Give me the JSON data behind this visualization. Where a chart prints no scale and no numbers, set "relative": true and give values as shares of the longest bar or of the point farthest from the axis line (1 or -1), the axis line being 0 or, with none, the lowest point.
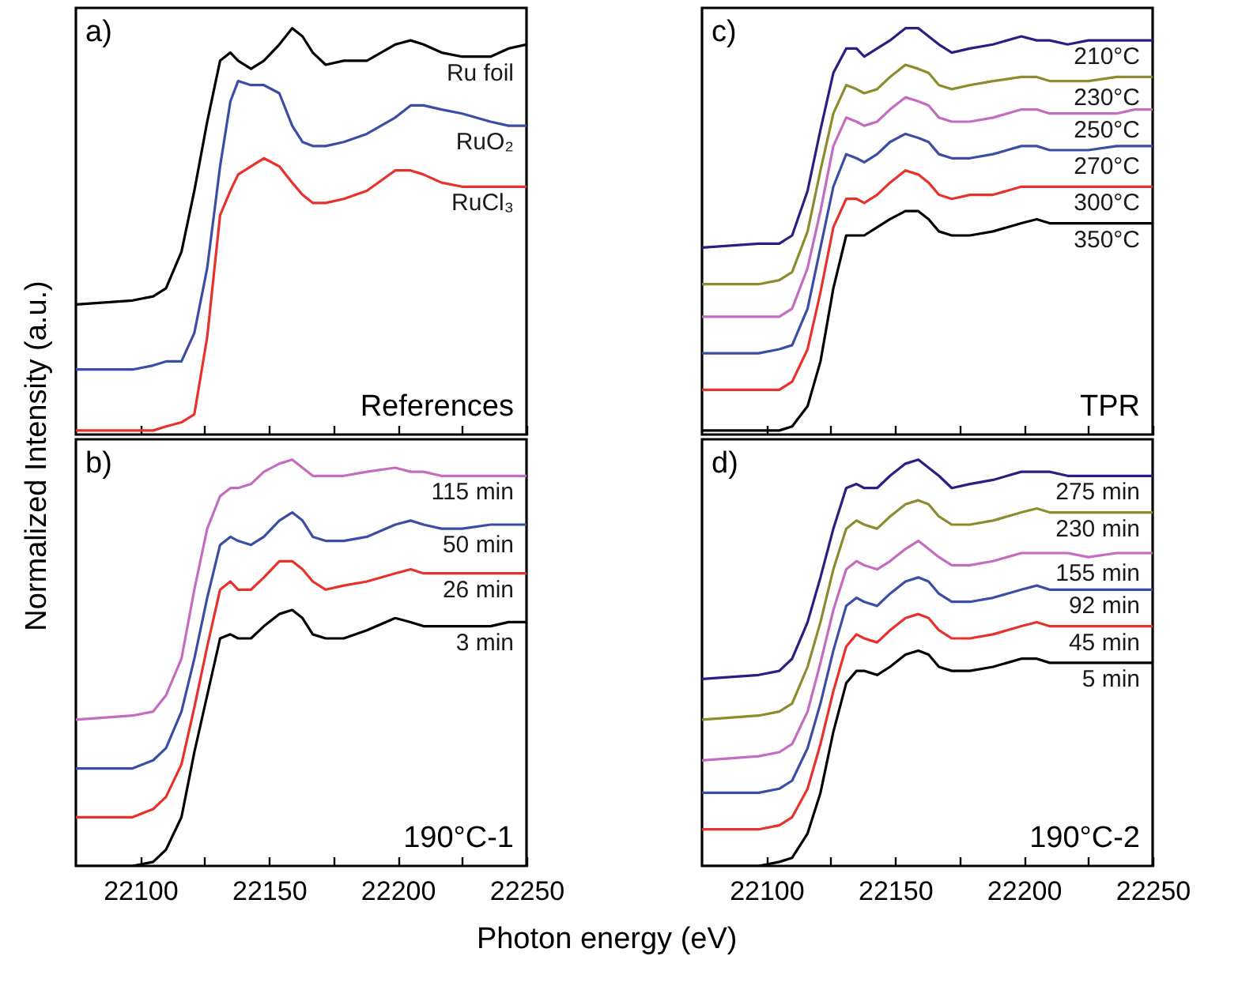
{
  "chart_data": [
    {
      "type": "line",
      "relative": true,
      "ylabel": "Normalized Intensity (a.u.)",
      "annotations": [
        "a)",
        "References"
      ],
      "tick_labels": false,
      "xlim": [
        22075,
        22250
      ],
      "xticks": [
        22100,
        {
          "value": 22125,
          "label": null
        },
        22150,
        {
          "value": 22175,
          "label": null
        },
        22200,
        {
          "value": 22225,
          "label": null
        },
        22250
      ],
      "x": [
        22075,
        22097,
        22105,
        22110,
        22116,
        22121,
        22126,
        22131,
        22135,
        22138,
        22143,
        22148,
        22154,
        22159,
        22163,
        22167,
        22172,
        22179,
        22188,
        22199,
        22205,
        22210,
        22217,
        22225,
        22236,
        22243,
        22250
      ],
      "series": [
        {
          "name": "Ru foil",
          "color": "#000000",
          "values": [
            0.32,
            0.33,
            0.34,
            0.36,
            0.45,
            0.6,
            0.77,
            0.92,
            0.94,
            0.92,
            0.9,
            0.92,
            0.96,
            1.0,
            0.98,
            0.94,
            0.91,
            0.92,
            0.92,
            0.96,
            0.97,
            0.96,
            0.94,
            0.93,
            0.93,
            0.95,
            0.96
          ]
        },
        {
          "name": "RuO₂",
          "color": "#3b4ea3",
          "values": [
            0.16,
            0.16,
            0.17,
            0.18,
            0.18,
            0.25,
            0.41,
            0.66,
            0.82,
            0.87,
            0.86,
            0.86,
            0.84,
            0.76,
            0.72,
            0.71,
            0.71,
            0.72,
            0.74,
            0.78,
            0.81,
            0.81,
            0.8,
            0.79,
            0.77,
            0.76,
            0.76
          ]
        },
        {
          "name": "RuCl₃",
          "color": "#e8312b",
          "values": [
            0.01,
            0.01,
            0.01,
            0.02,
            0.03,
            0.05,
            0.24,
            0.54,
            0.6,
            0.64,
            0.66,
            0.68,
            0.66,
            0.62,
            0.59,
            0.57,
            0.57,
            0.58,
            0.6,
            0.65,
            0.65,
            0.64,
            0.62,
            0.61,
            0.61,
            0.61,
            0.61
          ]
        }
      ]
    },
    {
      "type": "line",
      "relative": true,
      "xlabel": "Photon energy (eV)",
      "annotations": [
        "b)",
        "190°C-1"
      ],
      "tick_labels": "x",
      "xlim": [
        22075,
        22250
      ],
      "xticks": [
        22100,
        {
          "value": 22125,
          "label": null
        },
        22150,
        {
          "value": 22175,
          "label": null
        },
        22200,
        {
          "value": 22225,
          "label": null
        },
        22250
      ],
      "x": [
        22075,
        22097,
        22105,
        22110,
        22116,
        22121,
        22126,
        22131,
        22135,
        22138,
        22143,
        22148,
        22154,
        22159,
        22163,
        22167,
        22172,
        22179,
        22188,
        22199,
        22205,
        22210,
        22217,
        22225,
        22236,
        22243,
        22250
      ],
      "series": [
        {
          "name": "115 min",
          "color": "#c46cbf",
          "values": [
            0.36,
            0.37,
            0.38,
            0.42,
            0.51,
            0.68,
            0.83,
            0.91,
            0.93,
            0.93,
            0.94,
            0.97,
            0.99,
            1.0,
            0.98,
            0.96,
            0.96,
            0.96,
            0.97,
            0.98,
            0.97,
            0.97,
            0.96,
            0.96,
            0.96,
            0.96,
            0.96
          ]
        },
        {
          "name": "50 min",
          "color": "#3b4ea3",
          "values": [
            0.24,
            0.24,
            0.26,
            0.29,
            0.38,
            0.51,
            0.66,
            0.79,
            0.81,
            0.8,
            0.79,
            0.81,
            0.85,
            0.87,
            0.85,
            0.81,
            0.8,
            0.8,
            0.81,
            0.84,
            0.85,
            0.84,
            0.83,
            0.83,
            0.84,
            0.84,
            0.84
          ]
        },
        {
          "name": "26 min",
          "color": "#e8312b",
          "values": [
            0.12,
            0.12,
            0.14,
            0.17,
            0.25,
            0.39,
            0.54,
            0.68,
            0.7,
            0.68,
            0.68,
            0.71,
            0.75,
            0.75,
            0.73,
            0.7,
            0.68,
            0.69,
            0.7,
            0.72,
            0.73,
            0.72,
            0.72,
            0.72,
            0.72,
            0.72,
            0.72
          ]
        },
        {
          "name": "3 min",
          "color": "#000000",
          "values": [
            0.0,
            0.0,
            0.01,
            0.04,
            0.12,
            0.28,
            0.42,
            0.56,
            0.57,
            0.56,
            0.56,
            0.59,
            0.62,
            0.63,
            0.61,
            0.57,
            0.56,
            0.56,
            0.58,
            0.61,
            0.6,
            0.59,
            0.59,
            0.59,
            0.59,
            0.6,
            0.6
          ]
        }
      ]
    },
    {
      "type": "line",
      "relative": true,
      "annotations": [
        "c)",
        "TPR"
      ],
      "tick_labels": false,
      "xlim": [
        22075,
        22250
      ],
      "xticks": [
        22100,
        {
          "value": 22125,
          "label": null
        },
        22150,
        {
          "value": 22175,
          "label": null
        },
        22200,
        {
          "value": 22225,
          "label": null
        },
        22250
      ],
      "x": [
        22075,
        22097,
        22105,
        22110,
        22116,
        22121,
        22126,
        22131,
        22135,
        22138,
        22143,
        22148,
        22154,
        22159,
        22163,
        22167,
        22172,
        22179,
        22188,
        22199,
        22205,
        22210,
        22217,
        22225,
        22236,
        22243,
        22250
      ],
      "series": [
        {
          "name": "210°C",
          "color": "#2c1d84",
          "values": [
            0.46,
            0.47,
            0.47,
            0.49,
            0.6,
            0.75,
            0.89,
            0.95,
            0.95,
            0.93,
            0.95,
            0.97,
            1.0,
            1.0,
            0.98,
            0.96,
            0.94,
            0.95,
            0.96,
            0.98,
            0.97,
            0.97,
            0.96,
            0.97,
            0.97,
            0.97,
            0.97
          ]
        },
        {
          "name": "230°C",
          "color": "#8c8c2e",
          "values": [
            0.37,
            0.37,
            0.38,
            0.4,
            0.5,
            0.65,
            0.79,
            0.86,
            0.85,
            0.84,
            0.85,
            0.88,
            0.91,
            0.9,
            0.89,
            0.86,
            0.85,
            0.86,
            0.87,
            0.88,
            0.88,
            0.87,
            0.87,
            0.87,
            0.88,
            0.88,
            0.88
          ]
        },
        {
          "name": "250°C",
          "color": "#c46cbf",
          "values": [
            0.29,
            0.29,
            0.29,
            0.31,
            0.41,
            0.55,
            0.71,
            0.78,
            0.77,
            0.76,
            0.77,
            0.8,
            0.83,
            0.82,
            0.81,
            0.78,
            0.77,
            0.77,
            0.78,
            0.8,
            0.8,
            0.79,
            0.79,
            0.79,
            0.79,
            0.8,
            0.8
          ]
        },
        {
          "name": "270°C",
          "color": "#3b4ea3",
          "values": [
            0.2,
            0.2,
            0.21,
            0.22,
            0.31,
            0.46,
            0.61,
            0.69,
            0.68,
            0.67,
            0.69,
            0.72,
            0.74,
            0.73,
            0.72,
            0.69,
            0.68,
            0.68,
            0.69,
            0.71,
            0.71,
            0.7,
            0.7,
            0.7,
            0.71,
            0.71,
            0.71
          ]
        },
        {
          "name": "300°C",
          "color": "#e8312b",
          "values": [
            0.11,
            0.11,
            0.11,
            0.13,
            0.21,
            0.35,
            0.51,
            0.58,
            0.58,
            0.57,
            0.59,
            0.62,
            0.65,
            0.64,
            0.62,
            0.59,
            0.58,
            0.59,
            0.59,
            0.61,
            0.61,
            0.61,
            0.61,
            0.61,
            0.61,
            0.61,
            0.61
          ]
        },
        {
          "name": "350°C",
          "color": "#000000",
          "values": [
            0.01,
            0.01,
            0.01,
            0.02,
            0.07,
            0.18,
            0.36,
            0.49,
            0.49,
            0.49,
            0.51,
            0.53,
            0.55,
            0.55,
            0.53,
            0.5,
            0.49,
            0.49,
            0.5,
            0.52,
            0.53,
            0.52,
            0.52,
            0.52,
            0.52,
            0.52,
            0.52
          ]
        }
      ]
    },
    {
      "type": "line",
      "relative": true,
      "annotations": [
        "d)",
        "190°C-2"
      ],
      "tick_labels": "x",
      "xlim": [
        22075,
        22250
      ],
      "xticks": [
        22100,
        {
          "value": 22125,
          "label": null
        },
        22150,
        {
          "value": 22175,
          "label": null
        },
        22200,
        {
          "value": 22225,
          "label": null
        },
        22250
      ],
      "x": [
        22075,
        22097,
        22105,
        22110,
        22116,
        22121,
        22126,
        22131,
        22135,
        22138,
        22143,
        22148,
        22154,
        22159,
        22163,
        22167,
        22172,
        22179,
        22188,
        22199,
        22205,
        22210,
        22217,
        22225,
        22236,
        22243,
        22250
      ],
      "series": [
        {
          "name": "275 min",
          "color": "#2c1d84",
          "values": [
            0.46,
            0.47,
            0.48,
            0.51,
            0.6,
            0.71,
            0.83,
            0.93,
            0.94,
            0.93,
            0.93,
            0.96,
            0.99,
            1.0,
            0.98,
            0.96,
            0.93,
            0.94,
            0.95,
            0.97,
            0.97,
            0.97,
            0.96,
            0.96,
            0.96,
            0.96,
            0.96
          ]
        },
        {
          "name": "230 min",
          "color": "#8c8c2e",
          "values": [
            0.36,
            0.37,
            0.38,
            0.4,
            0.49,
            0.6,
            0.73,
            0.83,
            0.85,
            0.84,
            0.83,
            0.86,
            0.89,
            0.9,
            0.89,
            0.86,
            0.84,
            0.84,
            0.85,
            0.87,
            0.88,
            0.87,
            0.87,
            0.87,
            0.87,
            0.87,
            0.87
          ]
        },
        {
          "name": "155 min",
          "color": "#c46cbf",
          "values": [
            0.26,
            0.27,
            0.28,
            0.3,
            0.38,
            0.5,
            0.63,
            0.73,
            0.75,
            0.74,
            0.73,
            0.75,
            0.78,
            0.8,
            0.78,
            0.76,
            0.74,
            0.74,
            0.75,
            0.77,
            0.77,
            0.77,
            0.77,
            0.76,
            0.77,
            0.77,
            0.77
          ]
        },
        {
          "name": "92 min",
          "color": "#3b4ea3",
          "values": [
            0.18,
            0.18,
            0.19,
            0.21,
            0.29,
            0.4,
            0.53,
            0.64,
            0.66,
            0.65,
            0.64,
            0.67,
            0.7,
            0.71,
            0.7,
            0.67,
            0.65,
            0.65,
            0.66,
            0.68,
            0.69,
            0.68,
            0.68,
            0.68,
            0.68,
            0.68,
            0.68
          ]
        },
        {
          "name": "45 min",
          "color": "#e8312b",
          "values": [
            0.09,
            0.09,
            0.1,
            0.12,
            0.19,
            0.3,
            0.43,
            0.54,
            0.57,
            0.56,
            0.55,
            0.58,
            0.61,
            0.62,
            0.61,
            0.58,
            0.56,
            0.56,
            0.57,
            0.59,
            0.6,
            0.59,
            0.59,
            0.59,
            0.59,
            0.59,
            0.59
          ]
        },
        {
          "name": "5 min",
          "color": "#000000",
          "values": [
            0.0,
            0.0,
            0.01,
            0.02,
            0.08,
            0.18,
            0.33,
            0.45,
            0.48,
            0.48,
            0.47,
            0.49,
            0.52,
            0.53,
            0.52,
            0.49,
            0.48,
            0.48,
            0.49,
            0.51,
            0.51,
            0.5,
            0.5,
            0.5,
            0.5,
            0.5,
            0.5
          ]
        }
      ]
    }
  ]
}
